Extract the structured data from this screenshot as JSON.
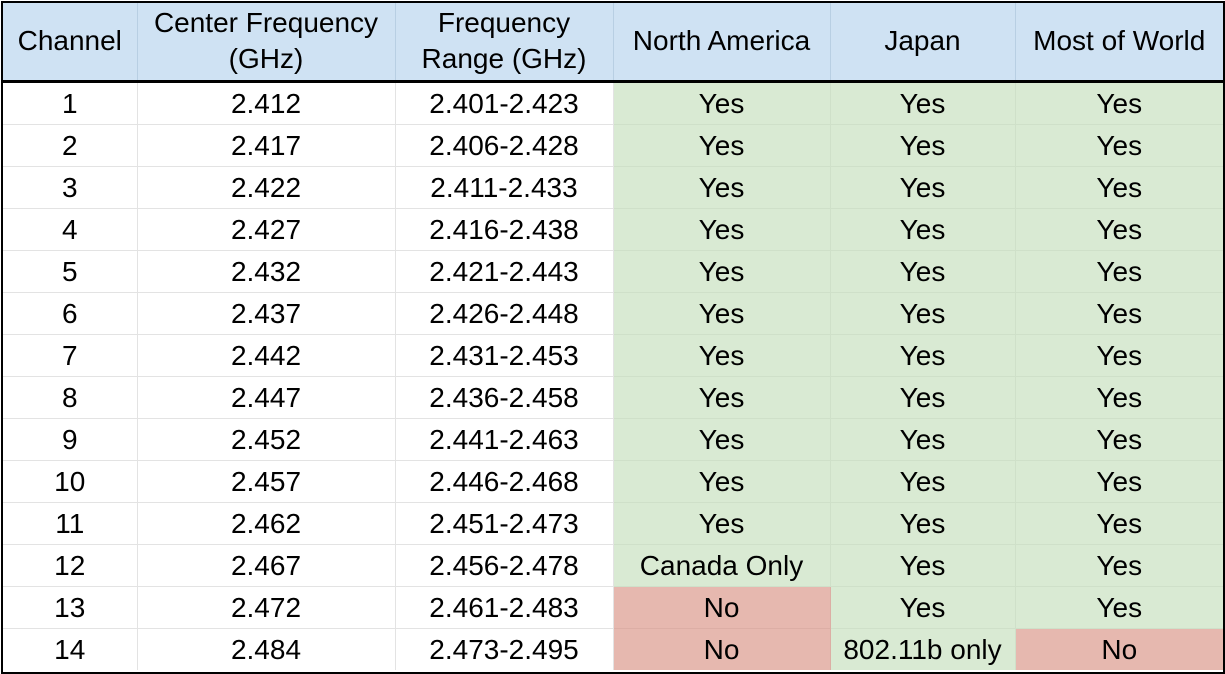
{
  "table": {
    "headers": [
      [
        "Channel"
      ],
      [
        "Center Frequency",
        "(GHz)"
      ],
      [
        "Frequency",
        "Range (GHz)"
      ],
      [
        "North America"
      ],
      [
        "Japan"
      ],
      [
        "Most of World"
      ]
    ],
    "rows": [
      [
        "1",
        "2.412",
        "2.401-2.423",
        "Yes",
        "Yes",
        "Yes"
      ],
      [
        "2",
        "2.417",
        "2.406-2.428",
        "Yes",
        "Yes",
        "Yes"
      ],
      [
        "3",
        "2.422",
        "2.411-2.433",
        "Yes",
        "Yes",
        "Yes"
      ],
      [
        "4",
        "2.427",
        "2.416-2.438",
        "Yes",
        "Yes",
        "Yes"
      ],
      [
        "5",
        "2.432",
        "2.421-2.443",
        "Yes",
        "Yes",
        "Yes"
      ],
      [
        "6",
        "2.437",
        "2.426-2.448",
        "Yes",
        "Yes",
        "Yes"
      ],
      [
        "7",
        "2.442",
        "2.431-2.453",
        "Yes",
        "Yes",
        "Yes"
      ],
      [
        "8",
        "2.447",
        "2.436-2.458",
        "Yes",
        "Yes",
        "Yes"
      ],
      [
        "9",
        "2.452",
        "2.441-2.463",
        "Yes",
        "Yes",
        "Yes"
      ],
      [
        "10",
        "2.457",
        "2.446-2.468",
        "Yes",
        "Yes",
        "Yes"
      ],
      [
        "11",
        "2.462",
        "2.451-2.473",
        "Yes",
        "Yes",
        "Yes"
      ],
      [
        "12",
        "2.467",
        "2.456-2.478",
        "Canada Only",
        "Yes",
        "Yes"
      ],
      [
        "13",
        "2.472",
        "2.461-2.483",
        "No",
        "Yes",
        "Yes"
      ],
      [
        "14",
        "2.484",
        "2.473-2.495",
        "No",
        "802.11b only",
        "No"
      ]
    ],
    "cell_status": [
      [
        "",
        "",
        "",
        "allowed",
        "allowed",
        "allowed"
      ],
      [
        "",
        "",
        "",
        "allowed",
        "allowed",
        "allowed"
      ],
      [
        "",
        "",
        "",
        "allowed",
        "allowed",
        "allowed"
      ],
      [
        "",
        "",
        "",
        "allowed",
        "allowed",
        "allowed"
      ],
      [
        "",
        "",
        "",
        "allowed",
        "allowed",
        "allowed"
      ],
      [
        "",
        "",
        "",
        "allowed",
        "allowed",
        "allowed"
      ],
      [
        "",
        "",
        "",
        "allowed",
        "allowed",
        "allowed"
      ],
      [
        "",
        "",
        "",
        "allowed",
        "allowed",
        "allowed"
      ],
      [
        "",
        "",
        "",
        "allowed",
        "allowed",
        "allowed"
      ],
      [
        "",
        "",
        "",
        "allowed",
        "allowed",
        "allowed"
      ],
      [
        "",
        "",
        "",
        "allowed",
        "allowed",
        "allowed"
      ],
      [
        "",
        "",
        "",
        "allowed",
        "allowed",
        "allowed"
      ],
      [
        "",
        "",
        "",
        "not-allowed",
        "allowed",
        "allowed"
      ],
      [
        "",
        "",
        "",
        "not-allowed",
        "allowed",
        "not-allowed"
      ]
    ]
  },
  "colors": {
    "header_background": "#cfe2f3",
    "allowed_background": "#d9ead3",
    "not_allowed_background": "#e6b8af",
    "border": "#000000"
  }
}
